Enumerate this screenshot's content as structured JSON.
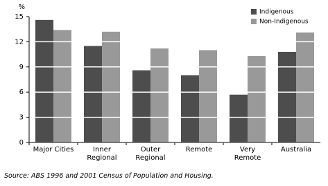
{
  "chart_data": {
    "type": "bar",
    "y_unit": "%",
    "categories": [
      "Major Cities",
      "Inner Regional",
      "Outer Regional",
      "Remote",
      "Very Remote",
      "Australia"
    ],
    "series": [
      {
        "name": "Indigenous",
        "color": "#4d4d4d",
        "values": [
          14.6,
          11.5,
          8.6,
          8.0,
          5.7,
          10.8
        ]
      },
      {
        "name": "Non-Indigenous",
        "color": "#999999",
        "values": [
          13.4,
          13.2,
          11.2,
          11.0,
          10.3,
          13.1
        ]
      }
    ],
    "ylim": [
      0,
      15
    ],
    "yticks": [
      0,
      3,
      6,
      9,
      12,
      15
    ],
    "grid": true,
    "grid_color": "#ffffff",
    "legend_position": "top-right",
    "source": "Source: ABS 1996 and 2001 Census of Population and Housing."
  }
}
